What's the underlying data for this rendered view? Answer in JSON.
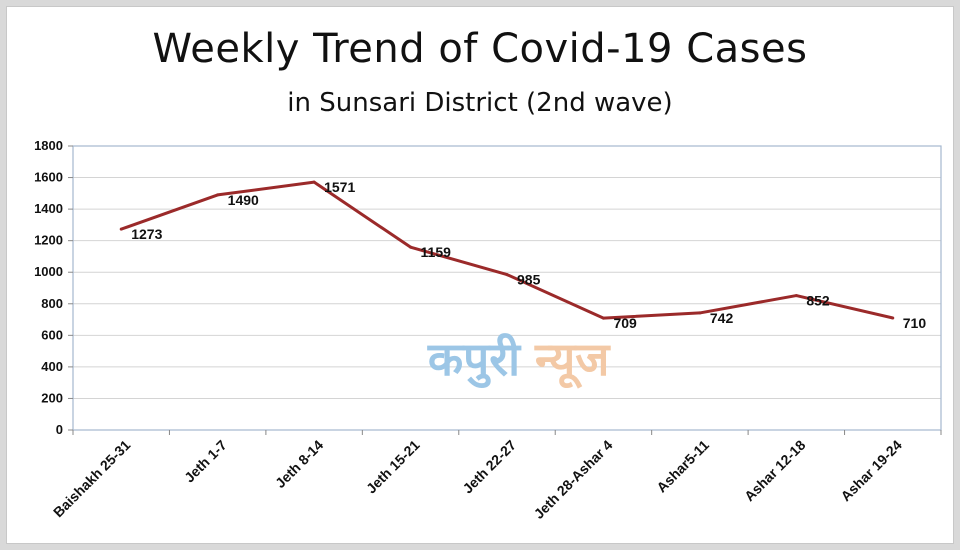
{
  "chart_data": {
    "type": "line",
    "title": "Weekly Trend of Covid-19 Cases",
    "subtitle": "in Sunsari District (2nd wave)",
    "categories": [
      "Baishakh 25-31",
      "Jeth 1-7",
      "Jeth 8-14",
      "Jeth 15-21",
      "Jeth  22-27",
      "Jeth 28-Ashar 4",
      "Ashar5-11",
      "Ashar 12-18",
      "Ashar 19-24"
    ],
    "values": [
      1273,
      1490,
      1571,
      1159,
      985,
      709,
      742,
      852,
      710
    ],
    "ylim": [
      0,
      1800
    ],
    "yticks": [
      0,
      200,
      400,
      600,
      800,
      1000,
      1200,
      1400,
      1600,
      1800
    ],
    "grid": true,
    "legend": "none",
    "line_color": "#9b2a2a"
  },
  "watermark": {
    "part1": "कपुरी",
    "part2": "न्यूज",
    "color1": "#9cc6e6",
    "color2": "#f3c9a6"
  }
}
